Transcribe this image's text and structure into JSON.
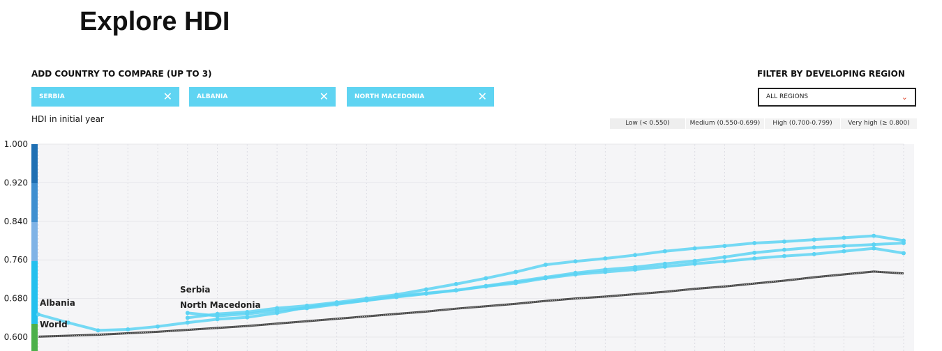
{
  "header": {
    "title": "Explore HDI"
  },
  "compare": {
    "label": "ADD COUNTRY TO COMPARE (UP TO 3)",
    "tags": [
      "SERBIA",
      "ALBANIA",
      "NORTH MACEDONIA"
    ]
  },
  "filter": {
    "label": "FILTER BY DEVELOPING REGION",
    "selected": "ALL REGIONS"
  },
  "hdi_levels": [
    "Low (< 0.550)",
    "Medium (0.550-0.699)",
    "High (0.700-0.799)",
    "Very high (≥ 0.800)"
  ],
  "chart_data": {
    "type": "line",
    "title": "HDI in initial year",
    "categories": [
      null,
      null,
      null,
      null,
      null,
      null,
      null,
      null,
      null,
      null,
      null,
      null,
      null,
      null,
      null,
      null,
      null,
      null,
      null,
      null,
      null,
      null,
      null,
      null,
      null,
      null,
      null,
      null,
      null,
      null
    ],
    "ylim": [
      0.5712,
      1.0
    ],
    "yticks": [
      {
        "value": 0.6,
        "label": "0.600"
      },
      {
        "value": 0.68,
        "label": "0.680"
      },
      {
        "value": 0.76,
        "label": "0.760"
      },
      {
        "value": 0.84,
        "label": "0.840"
      },
      {
        "value": 0.92,
        "label": "0.920"
      },
      {
        "value": 1.0,
        "label": "1.000"
      }
    ],
    "series": [
      {
        "name": "Serbia",
        "color": "#5dd3f3",
        "values": [
          null,
          null,
          null,
          null,
          null,
          0.64,
          0.648,
          0.652,
          0.66,
          0.665,
          0.672,
          0.68,
          0.688,
          0.699,
          0.71,
          0.722,
          0.735,
          0.75,
          0.757,
          0.763,
          0.77,
          0.778,
          0.784,
          0.789,
          0.795,
          0.798,
          0.802,
          0.806,
          0.81,
          0.8
        ]
      },
      {
        "name": "North Macedonia",
        "color": "#5dd3f3",
        "values": [
          null,
          null,
          null,
          null,
          null,
          0.65,
          0.644,
          0.648,
          0.655,
          0.66,
          0.668,
          0.676,
          0.683,
          0.69,
          0.697,
          0.705,
          0.712,
          0.722,
          0.73,
          0.735,
          0.74,
          0.746,
          0.752,
          0.757,
          0.763,
          0.768,
          0.772,
          0.778,
          0.784,
          0.774
        ]
      },
      {
        "name": "Albania",
        "color": "#5dd3f3",
        "values": [
          0.647,
          0.63,
          0.614,
          0.616,
          0.622,
          0.63,
          0.637,
          0.641,
          0.65,
          0.662,
          0.67,
          0.676,
          0.685,
          0.691,
          0.697,
          0.706,
          0.715,
          0.724,
          0.733,
          0.74,
          0.745,
          0.752,
          0.758,
          0.766,
          0.775,
          0.781,
          0.786,
          0.789,
          0.792,
          0.795
        ]
      },
      {
        "name": "World",
        "color": "#4a4a4a",
        "values": [
          0.601,
          0.603,
          0.605,
          0.608,
          0.611,
          0.615,
          0.619,
          0.623,
          0.628,
          0.633,
          0.638,
          0.643,
          0.648,
          0.653,
          0.659,
          0.664,
          0.669,
          0.675,
          0.68,
          0.684,
          0.689,
          0.694,
          0.7,
          0.705,
          0.711,
          0.717,
          0.724,
          0.73,
          0.736,
          0.732
        ]
      }
    ]
  }
}
